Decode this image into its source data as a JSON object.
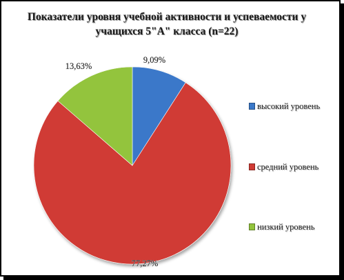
{
  "chart_data": {
    "type": "pie",
    "title_lines": [
      "Показатели уровня учебной активности и успеваемости у",
      "учащихся 5\"А\" класса (n=22)"
    ],
    "slices": [
      {
        "label": "высокий уровень",
        "value": 9.09,
        "value_label": "9,09%",
        "color": "#3a78c9"
      },
      {
        "label": "средний уровень",
        "value": 77.27,
        "value_label": "77,27%",
        "color": "#d03b34"
      },
      {
        "label": "низкий уровень",
        "value": 13.63,
        "value_label": "13,63%",
        "color": "#93c43c"
      }
    ],
    "legend_position": "right"
  }
}
